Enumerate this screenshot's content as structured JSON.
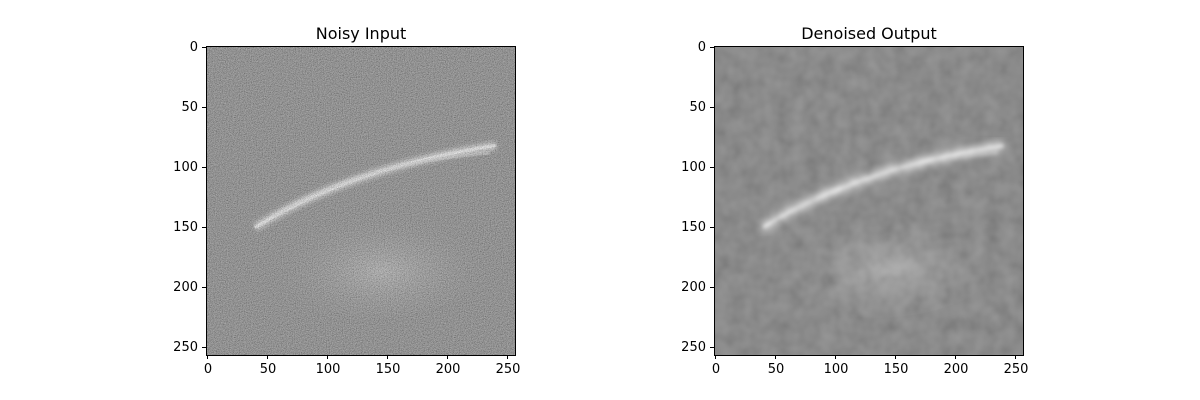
{
  "panels": [
    {
      "title": "Noisy Input",
      "image": "noisy grayscale image of a curved bright arc over a textured region",
      "noise": "high"
    },
    {
      "title": "Denoised Output",
      "image": "smoothed grayscale image of the same curved bright arc",
      "noise": "low"
    }
  ],
  "axes": {
    "yticks": [
      "0",
      "50",
      "100",
      "150",
      "200",
      "250"
    ],
    "xticks": [
      "0",
      "50",
      "100",
      "150",
      "200",
      "250"
    ],
    "range": [
      0,
      256
    ]
  },
  "colors": {
    "background": "#ffffff",
    "frame": "#000000",
    "noisy_base": "#6e6e6e",
    "denoised_base": "#7a7a7a",
    "arc": "#e8e8e8"
  }
}
